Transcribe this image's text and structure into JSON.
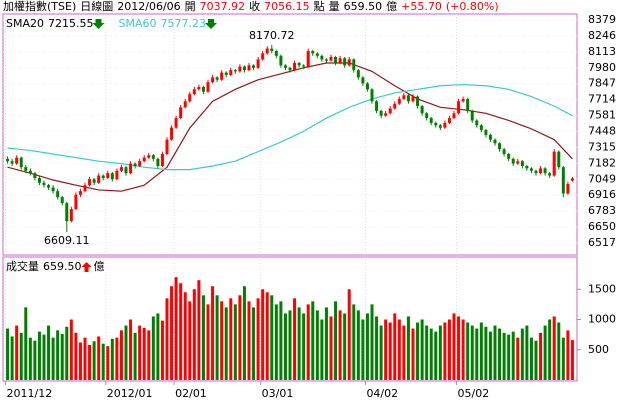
{
  "chart_data": {
    "type": "candlestick",
    "header": [
      {
        "text": "加權指數(TSE)",
        "color": "#000000"
      },
      {
        "text": "日線圖",
        "color": "#000000"
      },
      {
        "text": "2012/06/06",
        "color": "#000000"
      },
      {
        "text": "開",
        "color": "#000000"
      },
      {
        "text": "7037.92",
        "color": "#ff0000"
      },
      {
        "text": "收",
        "color": "#000000"
      },
      {
        "text": "7056.15",
        "color": "#ff0000"
      },
      {
        "text": "點",
        "color": "#000000"
      },
      {
        "text": "量",
        "color": "#000000"
      },
      {
        "text": "659.50",
        "color": "#000000"
      },
      {
        "text": "億",
        "color": "#000000"
      },
      {
        "text": "+55.70",
        "color": "#ff0000"
      },
      {
        "text": "(+0.80%)",
        "color": "#ff0000"
      }
    ],
    "up_color": "#ff0000",
    "down_color": "#008000",
    "ylim": [
      6417,
      8429
    ],
    "yticks": [
      8379,
      8246,
      8113,
      7980,
      7847,
      7714,
      7581,
      7448,
      7315,
      7182,
      7049,
      6916,
      6783,
      6650,
      6517
    ],
    "xlim": [
      -1,
      125
    ],
    "xticks": [
      {
        "value": 0,
        "label": "2011/12"
      },
      {
        "value": 22,
        "label": "2012/01"
      },
      {
        "value": 37,
        "label": "02/01"
      },
      {
        "value": 56,
        "label": "03/01"
      },
      {
        "value": 79,
        "label": "04/02"
      },
      {
        "value": 99,
        "label": "05/02"
      }
    ],
    "annotations": [
      {
        "text": "8170.72",
        "index": 58
      },
      {
        "text": "6609.11",
        "index": 13
      }
    ],
    "sma": [
      {
        "name": "SMA20",
        "legend_value": "7215.55",
        "trend": "down",
        "color": "#8b1a1a",
        "x": [
          0,
          5,
          10,
          15,
          20,
          25,
          30,
          35,
          40,
          45,
          50,
          55,
          60,
          65,
          70,
          75,
          80,
          85,
          90,
          95,
          100,
          105,
          110,
          115,
          120,
          124
        ],
        "values": [
          7150,
          7100,
          7043,
          7000,
          6960,
          6950,
          7000,
          7150,
          7477,
          7700,
          7800,
          7880,
          7930,
          7980,
          8020,
          8020,
          7950,
          7830,
          7720,
          7650,
          7630,
          7600,
          7540,
          7470,
          7380,
          7220
        ]
      },
      {
        "name": "SMA60",
        "legend_value": "7577.23",
        "trend": "down",
        "color": "#40c8c8",
        "x": [
          0,
          5,
          10,
          15,
          20,
          25,
          30,
          35,
          40,
          45,
          50,
          55,
          60,
          65,
          70,
          75,
          80,
          85,
          90,
          95,
          100,
          105,
          110,
          115,
          120,
          124
        ],
        "values": [
          7310,
          7290,
          7260,
          7230,
          7200,
          7180,
          7150,
          7130,
          7130,
          7160,
          7200,
          7280,
          7360,
          7450,
          7560,
          7650,
          7720,
          7770,
          7800,
          7830,
          7840,
          7830,
          7800,
          7740,
          7660,
          7580
        ]
      }
    ],
    "candles": [
      [
        7220,
        7240,
        7180,
        7200
      ],
      [
        7200,
        7220,
        7160,
        7180
      ],
      [
        7180,
        7250,
        7170,
        7230
      ],
      [
        7230,
        7240,
        7130,
        7150
      ],
      [
        7150,
        7170,
        7100,
        7120
      ],
      [
        7120,
        7140,
        7080,
        7100
      ],
      [
        7100,
        7110,
        7040,
        7060
      ],
      [
        7060,
        7080,
        7000,
        7020
      ],
      [
        7020,
        7040,
        6980,
        7000
      ],
      [
        7000,
        7010,
        6960,
        6980
      ],
      [
        6980,
        7000,
        6930,
        6950
      ],
      [
        6950,
        6970,
        6880,
        6900
      ],
      [
        6900,
        6910,
        6830,
        6850
      ],
      [
        6850,
        6860,
        6609.11,
        6700
      ],
      [
        6700,
        6820,
        6690,
        6800
      ],
      [
        6800,
        6940,
        6790,
        6920
      ],
      [
        6920,
        6970,
        6900,
        6950
      ],
      [
        6950,
        7020,
        6940,
        7000
      ],
      [
        7000,
        7070,
        6990,
        7050
      ],
      [
        7050,
        7060,
        7000,
        7020
      ],
      [
        7020,
        7100,
        7010,
        7080
      ],
      [
        7080,
        7090,
        7040,
        7060
      ],
      [
        7060,
        7120,
        7050,
        7100
      ],
      [
        7100,
        7110,
        7030,
        7050
      ],
      [
        7050,
        7140,
        7040,
        7120
      ],
      [
        7120,
        7170,
        7110,
        7150
      ],
      [
        7150,
        7160,
        7080,
        7100
      ],
      [
        7100,
        7200,
        7090,
        7180
      ],
      [
        7180,
        7190,
        7140,
        7160
      ],
      [
        7160,
        7220,
        7150,
        7200
      ],
      [
        7200,
        7250,
        7190,
        7230
      ],
      [
        7230,
        7270,
        7220,
        7250
      ],
      [
        7250,
        7260,
        7200,
        7220
      ],
      [
        7220,
        7230,
        7140,
        7160
      ],
      [
        7160,
        7280,
        7150,
        7260
      ],
      [
        7260,
        7400,
        7250,
        7380
      ],
      [
        7380,
        7500,
        7370,
        7480
      ],
      [
        7480,
        7580,
        7470,
        7560
      ],
      [
        7560,
        7670,
        7550,
        7650
      ],
      [
        7650,
        7720,
        7640,
        7700
      ],
      [
        7700,
        7780,
        7690,
        7760
      ],
      [
        7760,
        7820,
        7750,
        7800
      ],
      [
        7800,
        7840,
        7790,
        7820
      ],
      [
        7820,
        7830,
        7760,
        7780
      ],
      [
        7780,
        7880,
        7770,
        7860
      ],
      [
        7860,
        7920,
        7850,
        7900
      ],
      [
        7900,
        7910,
        7860,
        7880
      ],
      [
        7880,
        7960,
        7870,
        7940
      ],
      [
        7940,
        7950,
        7900,
        7920
      ],
      [
        7920,
        7980,
        7910,
        7960
      ],
      [
        7960,
        7970,
        7930,
        7950
      ],
      [
        7950,
        8010,
        7940,
        7990
      ],
      [
        7990,
        8000,
        7940,
        7960
      ],
      [
        7960,
        8020,
        7950,
        8000
      ],
      [
        8000,
        8010,
        7960,
        7980
      ],
      [
        7980,
        8070,
        7970,
        8050
      ],
      [
        8050,
        8120,
        8040,
        8100
      ],
      [
        8100,
        8160,
        8090,
        8140
      ],
      [
        8140,
        8170.72,
        8100,
        8120
      ],
      [
        8120,
        8130,
        8060,
        8080
      ],
      [
        8080,
        8090,
        7980,
        8000
      ],
      [
        8000,
        8010,
        7960,
        7980
      ],
      [
        7980,
        7990,
        7940,
        7960
      ],
      [
        7960,
        8040,
        7950,
        8020
      ],
      [
        8020,
        8030,
        7980,
        8000
      ],
      [
        8000,
        8010,
        7970,
        7990
      ],
      [
        7990,
        8140,
        7980,
        8120
      ],
      [
        8120,
        8130,
        8080,
        8100
      ],
      [
        8100,
        8110,
        8060,
        8080
      ],
      [
        8080,
        8090,
        8030,
        8050
      ],
      [
        8050,
        8060,
        8020,
        8040
      ],
      [
        8040,
        8090,
        8030,
        8070
      ],
      [
        8070,
        8080,
        8000,
        8020
      ],
      [
        8020,
        8080,
        8010,
        8060
      ],
      [
        8060,
        8070,
        7980,
        8000
      ],
      [
        8000,
        8070,
        7990,
        8050
      ],
      [
        8050,
        8060,
        7940,
        7960
      ],
      [
        7960,
        7970,
        7880,
        7900
      ],
      [
        7900,
        7910,
        7830,
        7850
      ],
      [
        7850,
        7860,
        7780,
        7800
      ],
      [
        7800,
        7810,
        7680,
        7700
      ],
      [
        7700,
        7710,
        7600,
        7620
      ],
      [
        7620,
        7630,
        7560,
        7580
      ],
      [
        7580,
        7620,
        7570,
        7600
      ],
      [
        7600,
        7660,
        7590,
        7640
      ],
      [
        7640,
        7700,
        7630,
        7680
      ],
      [
        7680,
        7740,
        7670,
        7720
      ],
      [
        7720,
        7770,
        7710,
        7750
      ],
      [
        7750,
        7760,
        7680,
        7700
      ],
      [
        7700,
        7760,
        7690,
        7740
      ],
      [
        7740,
        7750,
        7640,
        7660
      ],
      [
        7660,
        7670,
        7580,
        7600
      ],
      [
        7600,
        7610,
        7540,
        7560
      ],
      [
        7560,
        7570,
        7500,
        7520
      ],
      [
        7520,
        7530,
        7480,
        7500
      ],
      [
        7500,
        7510,
        7460,
        7480
      ],
      [
        7480,
        7540,
        7470,
        7520
      ],
      [
        7520,
        7580,
        7510,
        7560
      ],
      [
        7560,
        7620,
        7550,
        7600
      ],
      [
        7600,
        7720,
        7590,
        7700
      ],
      [
        7700,
        7740,
        7690,
        7720
      ],
      [
        7720,
        7730,
        7600,
        7620
      ],
      [
        7620,
        7630,
        7520,
        7540
      ],
      [
        7540,
        7550,
        7480,
        7500
      ],
      [
        7500,
        7510,
        7440,
        7460
      ],
      [
        7460,
        7470,
        7400,
        7420
      ],
      [
        7420,
        7430,
        7360,
        7380
      ],
      [
        7380,
        7390,
        7330,
        7350
      ],
      [
        7350,
        7360,
        7280,
        7300
      ],
      [
        7300,
        7310,
        7240,
        7260
      ],
      [
        7260,
        7270,
        7200,
        7220
      ],
      [
        7220,
        7230,
        7160,
        7180
      ],
      [
        7180,
        7220,
        7170,
        7200
      ],
      [
        7200,
        7210,
        7140,
        7160
      ],
      [
        7160,
        7170,
        7120,
        7140
      ],
      [
        7140,
        7150,
        7100,
        7120
      ],
      [
        7120,
        7130,
        7080,
        7100
      ],
      [
        7100,
        7160,
        7090,
        7140
      ],
      [
        7140,
        7150,
        7080,
        7100
      ],
      [
        7100,
        7110,
        7060,
        7080
      ],
      [
        7080,
        7300,
        7070,
        7280
      ],
      [
        7280,
        7290,
        7130,
        7150
      ],
      [
        7150,
        7160,
        6900,
        6930
      ],
      [
        6930,
        7030,
        6920,
        7010
      ],
      [
        7037.92,
        7070,
        7030,
        7056.15
      ]
    ],
    "volume": {
      "label": "成交量",
      "value_label": "659.50",
      "unit": "億",
      "trend": "up",
      "ylim": [
        0,
        2000
      ],
      "yticks": [
        500,
        1000,
        1500
      ],
      "values": [
        850,
        720,
        900,
        780,
        1200,
        700,
        650,
        800,
        750,
        900,
        700,
        820,
        760,
        880,
        1000,
        780,
        620,
        700,
        580,
        640,
        720,
        600,
        560,
        680,
        700,
        820,
        900,
        1000,
        780,
        900,
        860,
        820,
        1050,
        1100,
        980,
        1350,
        1550,
        1700,
        1600,
        1450,
        1300,
        1500,
        1650,
        1400,
        1250,
        1550,
        1400,
        1300,
        1200,
        1350,
        1250,
        1400,
        1550,
        1300,
        1200,
        1350,
        1500,
        1450,
        1400,
        1250,
        1300,
        1100,
        1150,
        1350,
        1200,
        1100,
        1250,
        1300,
        1150,
        1000,
        1200,
        1050,
        1300,
        1150,
        1100,
        1500,
        1250,
        1150,
        1000,
        1100,
        1250,
        1050,
        900,
        1000,
        950,
        1100,
        1000,
        900,
        1050,
        850,
        950,
        1000,
        900,
        850,
        800,
        900,
        950,
        1000,
        1100,
        1050,
        1000,
        950,
        900,
        850,
        950,
        880,
        800,
        900,
        850,
        780,
        750,
        800,
        700,
        850,
        900,
        700,
        650,
        780,
        900,
        1000,
        1050,
        950,
        700,
        820,
        659.5
      ]
    }
  }
}
